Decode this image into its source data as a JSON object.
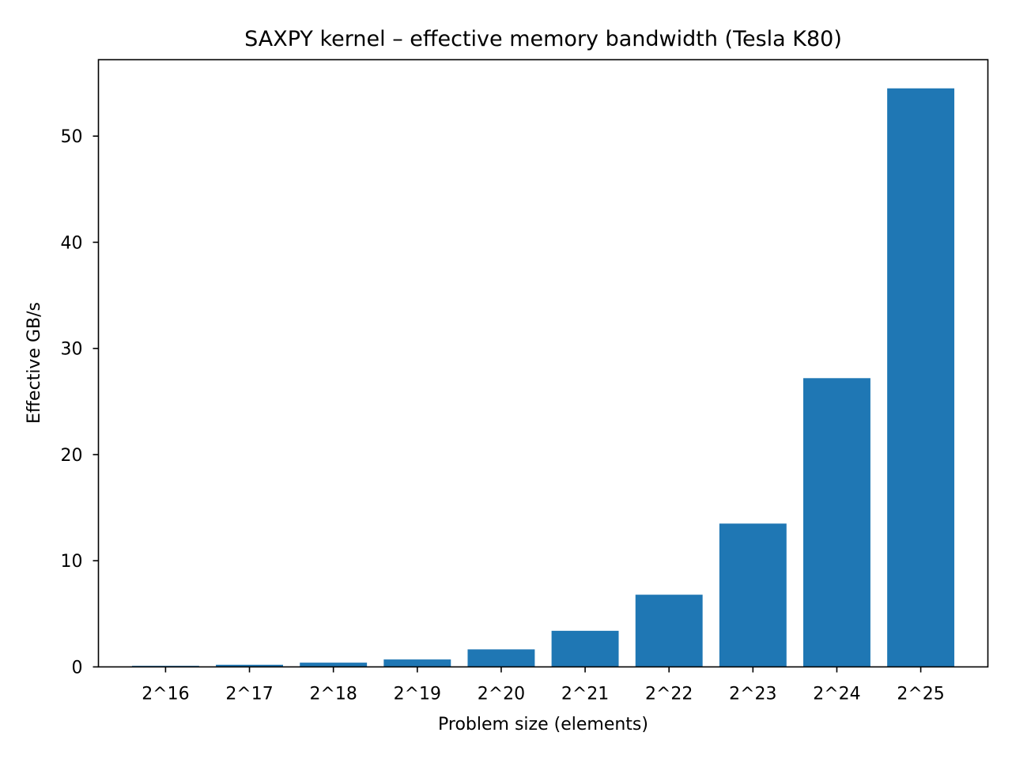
{
  "chart_data": {
    "type": "bar",
    "title": "SAXPY kernel – effective memory bandwidth (Tesla K80)",
    "xlabel": "Problem size (elements)",
    "ylabel": "Effective GB/s",
    "categories": [
      "2^16",
      "2^17",
      "2^18",
      "2^19",
      "2^20",
      "2^21",
      "2^22",
      "2^23",
      "2^24",
      "2^25"
    ],
    "values": [
      0.1,
      0.2,
      0.4,
      0.7,
      1.65,
      3.4,
      6.8,
      13.5,
      27.2,
      54.5
    ],
    "ylim": [
      0,
      57.2
    ],
    "yticks": [
      0,
      10,
      20,
      30,
      40,
      50
    ],
    "ytick_labels": [
      "0",
      "10",
      "20",
      "30",
      "40",
      "50"
    ],
    "bar_color": "#1f77b4",
    "grid": false
  }
}
